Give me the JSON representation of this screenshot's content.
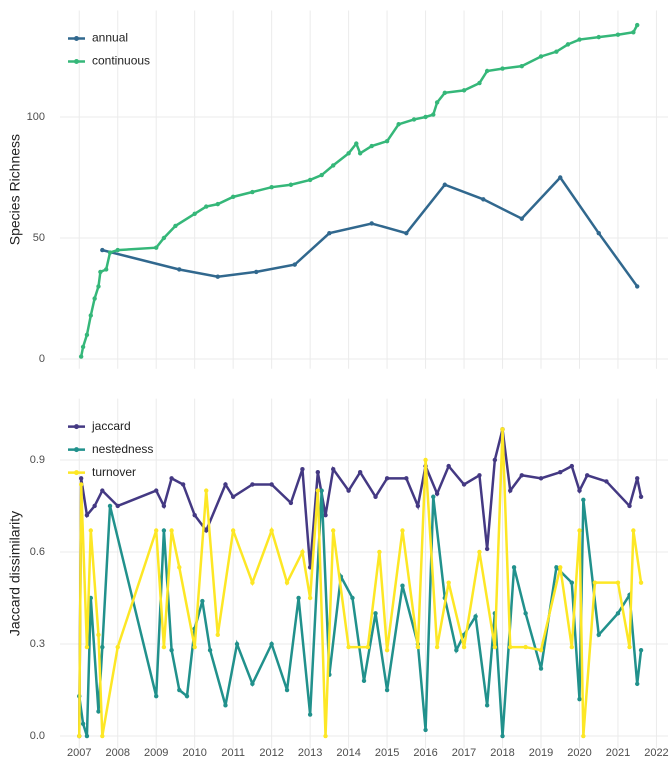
{
  "chart_data": [
    {
      "type": "line",
      "ylabel": "Species Richness",
      "xlim": [
        2006.5,
        2022.3
      ],
      "ylim": [
        -4,
        144
      ],
      "xticks": [
        2007,
        2008,
        2009,
        2010,
        2011,
        2012,
        2013,
        2014,
        2015,
        2016,
        2017,
        2018,
        2019,
        2020,
        2021,
        2022
      ],
      "yticks": [
        0,
        50,
        100
      ],
      "grid": true,
      "legend": "top-left",
      "series": [
        {
          "name": "annual",
          "color": "#31688e",
          "x": [
            2007.6,
            2009.6,
            2010.6,
            2011.6,
            2012.6,
            2013.5,
            2014.6,
            2015.5,
            2016.5,
            2017.5,
            2018.5,
            2019.5,
            2020.5,
            2021.5
          ],
          "values": [
            45,
            37,
            34,
            36,
            39,
            52,
            56,
            52,
            72,
            66,
            58,
            75,
            52,
            30
          ]
        },
        {
          "name": "continuous",
          "color": "#35b779",
          "x": [
            2007.05,
            2007.1,
            2007.2,
            2007.3,
            2007.4,
            2007.5,
            2007.55,
            2007.7,
            2007.8,
            2008,
            2009,
            2009.2,
            2009.5,
            2010,
            2010.3,
            2010.6,
            2011,
            2011.5,
            2012,
            2012.5,
            2013,
            2013.3,
            2013.6,
            2014,
            2014.2,
            2014.3,
            2014.6,
            2015,
            2015.3,
            2015.7,
            2016,
            2016.2,
            2016.3,
            2016.5,
            2017,
            2017.4,
            2017.6,
            2018,
            2018.5,
            2019,
            2019.4,
            2019.7,
            2020,
            2020.5,
            2021,
            2021.4,
            2021.5
          ],
          "values": [
            1,
            5,
            10,
            18,
            25,
            30,
            36,
            37,
            44,
            45,
            46,
            50,
            55,
            60,
            63,
            64,
            67,
            69,
            71,
            72,
            74,
            76,
            80,
            85,
            89,
            85,
            88,
            90,
            97,
            99,
            100,
            101,
            106,
            110,
            111,
            114,
            119,
            120,
            121,
            125,
            127,
            130,
            132,
            133,
            134,
            135,
            138
          ]
        }
      ]
    },
    {
      "type": "line",
      "ylabel": "Jaccard dissimilarity",
      "xlim": [
        2006.5,
        2022.3
      ],
      "ylim": [
        -0.04,
        1.1
      ],
      "xticks": [
        2007,
        2008,
        2009,
        2010,
        2011,
        2012,
        2013,
        2014,
        2015,
        2016,
        2017,
        2018,
        2019,
        2020,
        2021,
        2022
      ],
      "yticks": [
        {
          "value": 0,
          "label": "0.0"
        },
        {
          "value": 0.3,
          "label": "0.3"
        },
        {
          "value": 0.6,
          "label": "0.6"
        },
        {
          "value": 0.9,
          "label": "0.9"
        }
      ],
      "grid": true,
      "legend": "top-left",
      "series": [
        {
          "name": "jaccard",
          "color": "#443983",
          "x": [
            2007.0,
            2007.05,
            2007.2,
            2007.4,
            2007.6,
            2008,
            2009,
            2009.2,
            2009.4,
            2009.7,
            2010,
            2010.3,
            2010.8,
            2011,
            2011.5,
            2012,
            2012.5,
            2012.8,
            2013,
            2013.2,
            2013.4,
            2013.6,
            2014,
            2014.3,
            2014.7,
            2015,
            2015.5,
            2015.8,
            2016,
            2016.3,
            2016.6,
            2017,
            2017.4,
            2017.6,
            2017.8,
            2018,
            2018.2,
            2018.5,
            2019,
            2019.5,
            2019.8,
            2020,
            2020.2,
            2020.7,
            2021.3,
            2021.5,
            2021.6
          ],
          "values": [
            0.0,
            0.84,
            0.72,
            0.75,
            0.8,
            0.75,
            0.8,
            0.75,
            0.84,
            0.82,
            0.72,
            0.67,
            0.82,
            0.78,
            0.82,
            0.82,
            0.76,
            0.87,
            0.55,
            0.86,
            0.72,
            0.87,
            0.8,
            0.86,
            0.78,
            0.84,
            0.84,
            0.75,
            0.88,
            0.79,
            0.88,
            0.82,
            0.85,
            0.61,
            0.9,
            1.0,
            0.8,
            0.85,
            0.84,
            0.86,
            0.88,
            0.8,
            0.85,
            0.83,
            0.75,
            0.84,
            0.78
          ]
        },
        {
          "name": "nestedness",
          "color": "#21918c",
          "x": [
            2007.0,
            2007.1,
            2007.2,
            2007.3,
            2007.5,
            2007.6,
            2007.8,
            2009,
            2009.2,
            2009.4,
            2009.6,
            2009.8,
            2010,
            2010.2,
            2010.4,
            2010.8,
            2011.1,
            2011.5,
            2012,
            2012.4,
            2012.7,
            2013,
            2013.3,
            2013.5,
            2013.8,
            2014.1,
            2014.4,
            2014.7,
            2015,
            2015.4,
            2015.8,
            2016,
            2016.2,
            2016.5,
            2016.8,
            2017,
            2017.3,
            2017.6,
            2017.8,
            2018,
            2018.3,
            2018.6,
            2019,
            2019.4,
            2019.8,
            2020,
            2020.1,
            2020.5,
            2021,
            2021.3,
            2021.5,
            2021.6
          ],
          "values": [
            0.13,
            0.04,
            0.0,
            0.45,
            0.08,
            0.29,
            0.75,
            0.13,
            0.67,
            0.28,
            0.15,
            0.13,
            0.35,
            0.44,
            0.28,
            0.1,
            0.3,
            0.17,
            0.3,
            0.15,
            0.45,
            0.07,
            0.8,
            0.2,
            0.52,
            0.45,
            0.18,
            0.4,
            0.15,
            0.49,
            0.3,
            0.02,
            0.78,
            0.45,
            0.28,
            0.33,
            0.39,
            0.1,
            0.4,
            0.0,
            0.55,
            0.4,
            0.22,
            0.55,
            0.5,
            0.12,
            0.77,
            0.33,
            0.4,
            0.46,
            0.17,
            0.28
          ]
        },
        {
          "name": "turnover",
          "color": "#fde725",
          "x": [
            2007.0,
            2007.05,
            2007.2,
            2007.3,
            2007.5,
            2007.6,
            2008,
            2009,
            2009.2,
            2009.4,
            2009.6,
            2010,
            2010.3,
            2010.6,
            2011,
            2011.5,
            2012,
            2012.4,
            2012.8,
            2013,
            2013.2,
            2013.4,
            2013.6,
            2014,
            2014.5,
            2014.8,
            2015,
            2015.4,
            2015.8,
            2016,
            2016.3,
            2016.6,
            2017,
            2017.4,
            2017.8,
            2018,
            2018.2,
            2018.6,
            2019,
            2019.5,
            2019.8,
            2020,
            2020.1,
            2020.4,
            2021,
            2021.3,
            2021.4,
            2021.6
          ],
          "values": [
            0.0,
            0.82,
            0.29,
            0.67,
            0.33,
            0.0,
            0.29,
            0.67,
            0.29,
            0.67,
            0.55,
            0.29,
            0.8,
            0.33,
            0.67,
            0.5,
            0.67,
            0.5,
            0.6,
            0.45,
            0.8,
            0.0,
            0.67,
            0.29,
            0.29,
            0.6,
            0.28,
            0.67,
            0.29,
            0.9,
            0.29,
            0.5,
            0.29,
            0.6,
            0.29,
            1.0,
            0.29,
            0.29,
            0.28,
            0.55,
            0.29,
            0.67,
            0.0,
            0.5,
            0.5,
            0.29,
            0.67,
            0.5
          ]
        }
      ]
    }
  ]
}
